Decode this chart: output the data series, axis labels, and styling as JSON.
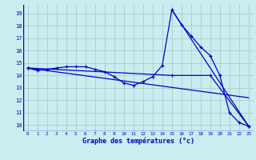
{
  "xlabel": "Graphe des températures (°c)",
  "background_color": "#c8eef0",
  "grid_color": "#aacccc",
  "line_color": "#0000cc",
  "xlim": [
    -0.5,
    23.5
  ],
  "ylim": [
    9.5,
    19.7
  ],
  "xticks": [
    0,
    1,
    2,
    3,
    4,
    5,
    6,
    7,
    8,
    9,
    10,
    11,
    12,
    13,
    14,
    15,
    16,
    17,
    18,
    19,
    20,
    21,
    22,
    23
  ],
  "yticks": [
    10,
    11,
    12,
    13,
    14,
    15,
    16,
    17,
    18,
    19
  ],
  "line1_x": [
    0,
    1,
    2,
    3,
    4,
    5,
    6,
    7,
    8,
    9,
    10,
    11,
    12,
    13,
    14,
    15,
    16,
    17,
    18,
    19,
    20,
    21,
    22,
    23
  ],
  "line1_y": [
    14.6,
    14.4,
    14.5,
    14.6,
    14.7,
    14.7,
    14.7,
    14.5,
    14.3,
    13.9,
    13.4,
    13.2,
    13.5,
    13.9,
    14.8,
    19.3,
    18.1,
    17.2,
    16.3,
    15.6,
    14.0,
    11.0,
    10.2,
    9.9
  ],
  "line2_x": [
    0,
    15,
    19,
    23
  ],
  "line2_y": [
    14.6,
    14.0,
    14.0,
    9.9
  ],
  "line3_x": [
    0,
    23
  ],
  "line3_y": [
    14.6,
    12.2
  ],
  "line4_x": [
    15,
    23
  ],
  "line4_y": [
    19.3,
    9.9
  ]
}
